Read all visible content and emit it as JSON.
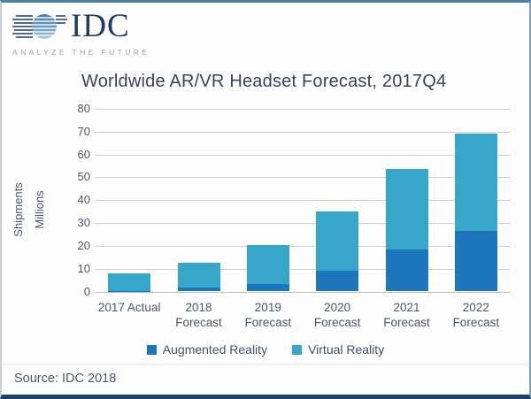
{
  "logo": {
    "name": "IDC",
    "tagline": "ANALYZE THE FUTURE",
    "name_color": "#1e3d66",
    "tagline_color": "#98a1a9"
  },
  "title": "Worldwide AR/VR Headset Forecast, 2017Q4",
  "source": "Source: IDC 2018",
  "colors": {
    "title_text": "#3a4160",
    "axis_text": "#4a566e",
    "legend_text": "#44506a",
    "gridline": "#cbd0d5",
    "baseline": "#b9bfc6",
    "ar_blue": "#1d76bc",
    "vr_teal": "#38a6c8"
  },
  "chart_data": {
    "type": "bar",
    "stacked": true,
    "title": "Worldwide AR/VR Headset Forecast, 2017Q4",
    "ylabel_lines": [
      "Shipments",
      "Millions"
    ],
    "xlabel": "",
    "ylim": [
      0,
      80
    ],
    "ytick_step": 10,
    "grid": true,
    "legend_position": "bottom",
    "categories": [
      "2017 Actual",
      "2018 Forecast",
      "2019 Forecast",
      "2020 Forecast",
      "2021 Forecast",
      "2022 Forecast"
    ],
    "category_tick_lines": [
      [
        "2017 Actual"
      ],
      [
        "2018",
        "Forecast"
      ],
      [
        "2019",
        "Forecast"
      ],
      [
        "2020",
        "Forecast"
      ],
      [
        "2021",
        "Forecast"
      ],
      [
        "2022",
        "Forecast"
      ]
    ],
    "series": [
      {
        "name": "Augmented Reality",
        "color": "#1d76bc",
        "values": [
          0.3,
          1.8,
          3.2,
          9.0,
          18.5,
          26.5
        ]
      },
      {
        "name": "Virtual Reality",
        "color": "#38a6c8",
        "values": [
          7.8,
          10.6,
          17.3,
          26.0,
          35.0,
          42.5
        ]
      }
    ],
    "stack_totals": [
      8.1,
      12.4,
      20.5,
      35.0,
      53.5,
      69.0
    ]
  }
}
